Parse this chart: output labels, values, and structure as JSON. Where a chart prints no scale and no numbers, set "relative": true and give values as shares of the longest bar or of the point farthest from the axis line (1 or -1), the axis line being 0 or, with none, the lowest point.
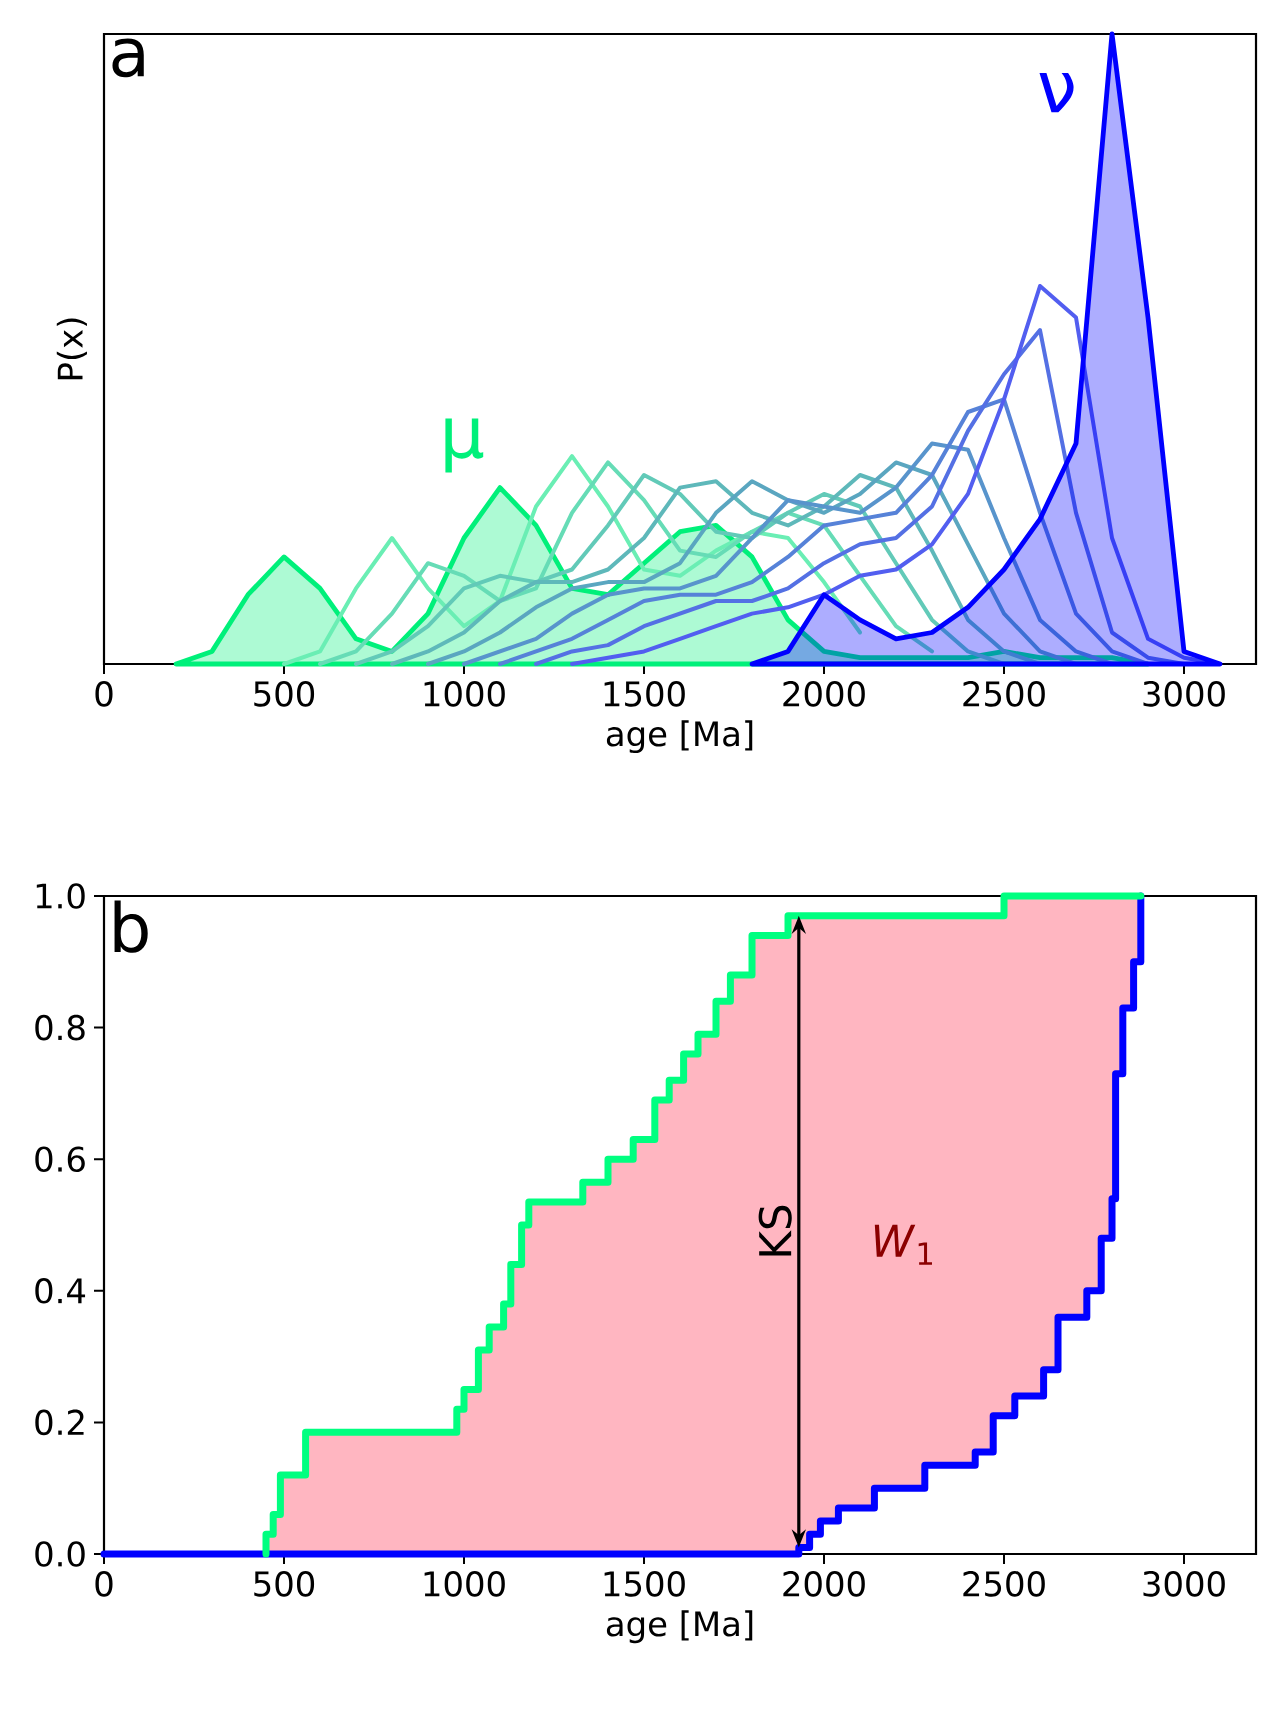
{
  "chart_data": [
    {
      "type": "line",
      "title": "a",
      "xlabel": "age [Ma]",
      "ylabel": "P(x)",
      "relative": true,
      "tick_labels": "x",
      "xlim": [
        0,
        3200
      ],
      "xticks": [
        0,
        500,
        1000,
        1500,
        2000,
        2500,
        3000
      ],
      "x": [
        200,
        300,
        400,
        500,
        600,
        700,
        800,
        900,
        1000,
        1100,
        1200,
        1300,
        1400,
        1500,
        1600,
        1700,
        1800,
        1900,
        2000,
        2100,
        2200,
        2300,
        2400,
        2500,
        2600,
        2700,
        2800,
        2900,
        3000,
        3100
      ],
      "series": [
        {
          "name": "μ",
          "type": "area",
          "color": "#00f07a",
          "values": [
            0,
            0.02,
            0.11,
            0.17,
            0.12,
            0.04,
            0.02,
            0.08,
            0.2,
            0.28,
            0.22,
            0.12,
            0.11,
            0.16,
            0.21,
            0.22,
            0.17,
            0.07,
            0.02,
            0.01,
            0.01,
            0.01,
            0.01,
            0.02,
            0.01,
            0.01,
            0.01,
            0,
            null,
            null
          ]
        },
        {
          "color": "#6aeeb4",
          "values": [
            null,
            null,
            null,
            0,
            0.02,
            0.12,
            0.2,
            0.12,
            0.06,
            0.1,
            0.25,
            0.33,
            0.25,
            0.15,
            0.14,
            0.18,
            0.21,
            0.2,
            0.13,
            0.05,
            null,
            null,
            null,
            null,
            null,
            null,
            null,
            null,
            null,
            null
          ]
        },
        {
          "color": "#66dcb6",
          "values": [
            null,
            null,
            null,
            null,
            0,
            0.02,
            0.08,
            0.16,
            0.14,
            0.1,
            0.12,
            0.24,
            0.32,
            0.26,
            0.18,
            0.17,
            0.21,
            0.24,
            0.22,
            0.14,
            0.06,
            0.02,
            null,
            null,
            null,
            null,
            null,
            null,
            null,
            null
          ]
        },
        {
          "color": "#62cab8",
          "values": [
            null,
            null,
            null,
            null,
            null,
            0,
            0.02,
            0.06,
            0.12,
            0.14,
            0.13,
            0.15,
            0.22,
            0.3,
            0.27,
            0.21,
            0.2,
            0.24,
            0.27,
            0.25,
            0.16,
            0.07,
            0.02,
            0,
            null,
            null,
            null,
            null,
            null,
            null
          ]
        },
        {
          "color": "#5eb8ba",
          "values": [
            null,
            null,
            null,
            null,
            null,
            null,
            0,
            0.02,
            0.05,
            0.1,
            0.13,
            0.13,
            0.15,
            0.2,
            0.28,
            0.29,
            0.24,
            0.22,
            0.25,
            0.3,
            0.28,
            0.18,
            0.07,
            0.02,
            0,
            null,
            null,
            null,
            null,
            null
          ]
        },
        {
          "color": "#5aa6c0",
          "values": [
            null,
            null,
            null,
            null,
            null,
            null,
            null,
            0,
            0.02,
            0.05,
            0.09,
            0.12,
            0.13,
            0.13,
            0.16,
            0.24,
            0.29,
            0.26,
            0.24,
            0.27,
            0.32,
            0.3,
            0.19,
            0.08,
            0.02,
            0,
            null,
            null,
            null,
            null
          ]
        },
        {
          "color": "#5894cc",
          "values": [
            null,
            null,
            null,
            null,
            null,
            null,
            null,
            null,
            0,
            0.02,
            0.04,
            0.08,
            0.11,
            0.12,
            0.12,
            0.14,
            0.2,
            0.26,
            0.25,
            0.24,
            0.28,
            0.35,
            0.34,
            0.2,
            0.07,
            0.02,
            0,
            null,
            null,
            null
          ]
        },
        {
          "color": "#5682d8",
          "values": [
            null,
            null,
            null,
            null,
            null,
            null,
            null,
            null,
            null,
            0,
            0.02,
            0.04,
            0.07,
            0.1,
            0.11,
            0.11,
            0.13,
            0.17,
            0.22,
            0.23,
            0.24,
            0.3,
            0.4,
            0.42,
            0.24,
            0.08,
            0.02,
            0,
            null,
            null
          ]
        },
        {
          "color": "#5470e4",
          "values": [
            null,
            null,
            null,
            null,
            null,
            null,
            null,
            null,
            null,
            null,
            0,
            0.02,
            0.03,
            0.06,
            0.08,
            0.1,
            0.1,
            0.12,
            0.16,
            0.19,
            0.2,
            0.25,
            0.37,
            0.46,
            0.53,
            0.24,
            0.05,
            0.01,
            0,
            null
          ]
        },
        {
          "color": "#525ef0",
          "values": [
            null,
            null,
            null,
            null,
            null,
            null,
            null,
            null,
            null,
            null,
            null,
            0,
            0.01,
            0.02,
            0.04,
            0.06,
            0.08,
            0.09,
            0.11,
            0.14,
            0.15,
            0.19,
            0.27,
            0.42,
            0.6,
            0.55,
            0.2,
            0.04,
            0.01,
            0
          ]
        },
        {
          "name": "ν",
          "type": "area",
          "color": "#0000ff",
          "values": [
            null,
            null,
            null,
            null,
            null,
            null,
            null,
            null,
            null,
            null,
            null,
            null,
            null,
            null,
            null,
            null,
            0,
            0.02,
            0.11,
            0.07,
            0.04,
            0.05,
            0.09,
            0.15,
            0.23,
            0.35,
            1,
            0.55,
            0.02,
            0
          ]
        }
      ]
    },
    {
      "type": "line",
      "title": "b",
      "xlabel": "age [Ma]",
      "xlim": [
        0,
        3200
      ],
      "xticks": [
        0,
        500,
        1000,
        1500,
        2000,
        2500,
        3000
      ],
      "ylim": [
        0,
        1
      ],
      "yticks": [
        {
          "value": 0,
          "label": "0.0"
        },
        0.2,
        0.4,
        0.6,
        0.8,
        {
          "value": 1,
          "label": "1.0"
        }
      ],
      "series": [
        {
          "color": "#0000ff",
          "x": [
            0,
            1930,
            1930,
            1960,
            1960,
            1990,
            1990,
            2040,
            2040,
            2140,
            2140,
            2280,
            2280,
            2420,
            2420,
            2470,
            2470,
            2530,
            2530,
            2610,
            2610,
            2650,
            2650,
            2730,
            2730,
            2770,
            2770,
            2800,
            2800,
            2810,
            2810,
            2830,
            2830,
            2860,
            2860,
            2880,
            2880
          ],
          "values": [
            0,
            0,
            0.01,
            0.01,
            0.03,
            0.03,
            0.05,
            0.05,
            0.07,
            0.07,
            0.1,
            0.1,
            0.135,
            0.135,
            0.155,
            0.155,
            0.21,
            0.21,
            0.24,
            0.24,
            0.28,
            0.28,
            0.36,
            0.36,
            0.4,
            0.4,
            0.48,
            0.48,
            0.54,
            0.54,
            0.73,
            0.73,
            0.83,
            0.83,
            0.9,
            0.9,
            1
          ]
        },
        {
          "color": "#00ff80",
          "x": [
            450,
            450,
            470,
            470,
            490,
            490,
            560,
            560,
            980,
            980,
            1000,
            1000,
            1040,
            1040,
            1070,
            1070,
            1110,
            1110,
            1130,
            1130,
            1160,
            1160,
            1180,
            1180,
            1330,
            1330,
            1400,
            1400,
            1470,
            1470,
            1530,
            1530,
            1570,
            1570,
            1610,
            1610,
            1650,
            1650,
            1700,
            1700,
            1740,
            1740,
            1800,
            1800,
            1900,
            1900,
            2500,
            2500,
            2880
          ],
          "values": [
            0,
            0.03,
            0.03,
            0.06,
            0.06,
            0.12,
            0.12,
            0.185,
            0.185,
            0.22,
            0.22,
            0.25,
            0.25,
            0.31,
            0.31,
            0.345,
            0.345,
            0.38,
            0.38,
            0.44,
            0.44,
            0.5,
            0.5,
            0.535,
            0.535,
            0.565,
            0.565,
            0.6,
            0.6,
            0.63,
            0.63,
            0.69,
            0.69,
            0.72,
            0.72,
            0.76,
            0.76,
            0.79,
            0.79,
            0.84,
            0.84,
            0.88,
            0.88,
            0.94,
            0.94,
            0.97,
            0.97,
            1,
            1
          ]
        }
      ],
      "ref_lines": [
        {
          "axis": "x",
          "value": 1930,
          "label": "KS",
          "color": "#000000"
        }
      ],
      "annotations": [
        "*W*$_{1}$"
      ]
    }
  ]
}
